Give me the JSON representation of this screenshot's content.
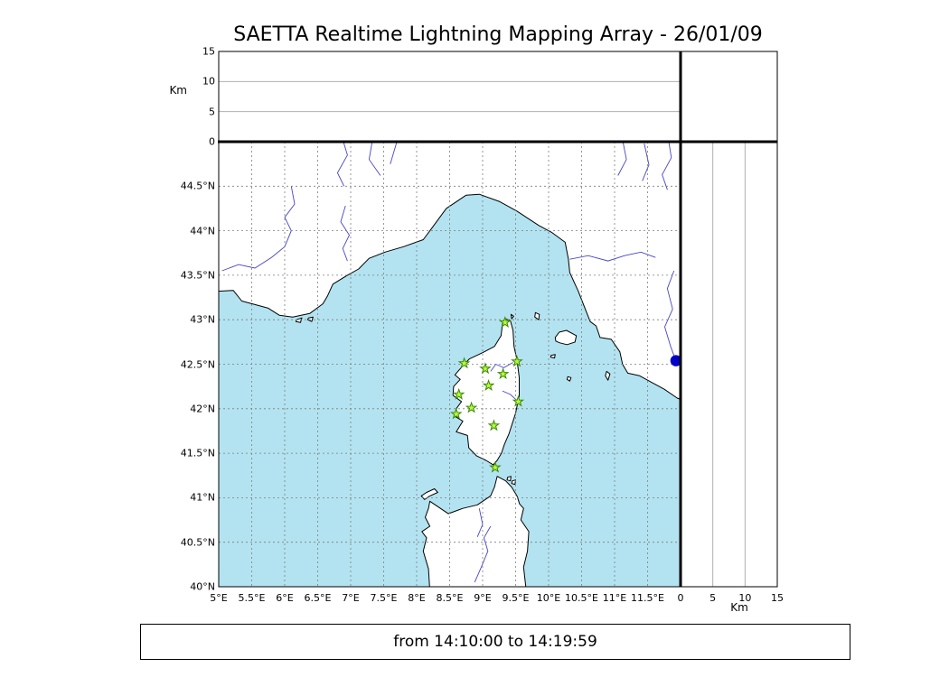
{
  "title": "SAETTA Realtime Lightning Mapping Array - 26/01/09",
  "footer": "from 14:10:00 to 14:19:59",
  "colors": {
    "sea": "#b3e3f0",
    "land": "#ffffff",
    "coast": "#000000",
    "river": "#4545c8",
    "grid": "#7d7d7d",
    "panel_grid": "#b0b0b0",
    "station_fill": "#b9f73e",
    "station_stroke": "#3a8a00",
    "event_dot": "#0000c8",
    "border": "#000000"
  },
  "chart_data": {
    "type": "scatter",
    "title": "SAETTA Realtime Lightning Mapping Array - 26/01/09",
    "time_window": "from 14:10:00 to 14:19:59",
    "panels": {
      "map": {
        "lon_range": [
          5,
          12
        ],
        "lat_range": [
          40,
          45
        ],
        "grid_step": 0.5,
        "lon_ticks": [
          {
            "value": 5,
            "label": "5°E"
          },
          {
            "value": 5.5,
            "label": "5.5°E"
          },
          {
            "value": 6,
            "label": "6°E"
          },
          {
            "value": 6.5,
            "label": "6.5°E"
          },
          {
            "value": 7,
            "label": "7°E"
          },
          {
            "value": 7.5,
            "label": "7.5°E"
          },
          {
            "value": 8,
            "label": "8°E"
          },
          {
            "value": 8.5,
            "label": "8.5°E"
          },
          {
            "value": 9,
            "label": "9°E"
          },
          {
            "value": 9.5,
            "label": "9.5°E"
          },
          {
            "value": 10,
            "label": "10°E"
          },
          {
            "value": 10.5,
            "label": "10.5°E"
          },
          {
            "value": 11,
            "label": "11°E"
          },
          {
            "value": 11.5,
            "label": "11.5°E"
          }
        ],
        "lat_ticks": [
          {
            "value": 44.5,
            "label": "44.5°N"
          },
          {
            "value": 44,
            "label": "44°N"
          },
          {
            "value": 43.5,
            "label": "43.5°N"
          },
          {
            "value": 43,
            "label": "43°N"
          },
          {
            "value": 42.5,
            "label": "42.5°N"
          },
          {
            "value": 42,
            "label": "42°N"
          },
          {
            "value": 41.5,
            "label": "41.5°N"
          },
          {
            "value": 41,
            "label": "41°N"
          },
          {
            "value": 40.5,
            "label": "40.5°N"
          },
          {
            "value": 40,
            "label": "40°N"
          }
        ]
      },
      "top_histogram": {
        "y_label": "Km",
        "y_range": [
          0,
          15
        ],
        "y_ticks": [
          0,
          5,
          10,
          15
        ],
        "gridlines": [
          5,
          10
        ],
        "data": []
      },
      "right_histogram": {
        "x_label": "Km",
        "x_range": [
          0,
          15
        ],
        "x_ticks": [
          0,
          5,
          10,
          15
        ],
        "gridlines": [
          5,
          10
        ],
        "data": []
      }
    },
    "stations": [
      {
        "lon": 9.34,
        "lat": 42.97
      },
      {
        "lon": 8.72,
        "lat": 42.51
      },
      {
        "lon": 9.04,
        "lat": 42.45
      },
      {
        "lon": 9.52,
        "lat": 42.53
      },
      {
        "lon": 9.31,
        "lat": 42.39
      },
      {
        "lon": 9.09,
        "lat": 42.26
      },
      {
        "lon": 8.64,
        "lat": 42.16
      },
      {
        "lon": 9.54,
        "lat": 42.08
      },
      {
        "lon": 8.83,
        "lat": 42.01
      },
      {
        "lon": 8.6,
        "lat": 41.94
      },
      {
        "lon": 9.17,
        "lat": 41.81
      },
      {
        "lon": 9.19,
        "lat": 41.34
      }
    ],
    "events": [
      {
        "lon": 11.93,
        "lat": 42.54
      }
    ]
  },
  "geo": {
    "mainland": [
      [
        4.7,
        43.35
      ],
      [
        5.0,
        43.32
      ],
      [
        5.22,
        43.33
      ],
      [
        5.35,
        43.21
      ],
      [
        5.55,
        43.17
      ],
      [
        5.75,
        43.13
      ],
      [
        5.92,
        43.05
      ],
      [
        6.12,
        43.03
      ],
      [
        6.38,
        43.07
      ],
      [
        6.58,
        43.18
      ],
      [
        6.65,
        43.27
      ],
      [
        6.73,
        43.4
      ],
      [
        6.95,
        43.5
      ],
      [
        7.12,
        43.57
      ],
      [
        7.28,
        43.69
      ],
      [
        7.52,
        43.76
      ],
      [
        7.8,
        43.82
      ],
      [
        8.1,
        43.9
      ],
      [
        8.25,
        44.05
      ],
      [
        8.45,
        44.25
      ],
      [
        8.75,
        44.4
      ],
      [
        8.95,
        44.41
      ],
      [
        9.25,
        44.33
      ],
      [
        9.52,
        44.22
      ],
      [
        9.85,
        44.06
      ],
      [
        10.05,
        43.98
      ],
      [
        10.25,
        43.87
      ],
      [
        10.3,
        43.68
      ],
      [
        10.32,
        43.53
      ],
      [
        10.45,
        43.32
      ],
      [
        10.54,
        43.15
      ],
      [
        10.63,
        42.98
      ],
      [
        10.72,
        42.93
      ],
      [
        10.78,
        42.8
      ],
      [
        10.95,
        42.78
      ],
      [
        11.08,
        42.64
      ],
      [
        11.12,
        42.5
      ],
      [
        11.2,
        42.4
      ],
      [
        11.38,
        42.37
      ],
      [
        11.55,
        42.3
      ],
      [
        11.75,
        42.22
      ],
      [
        11.95,
        42.12
      ],
      [
        12.3,
        42.02
      ],
      [
        12.3,
        45.3
      ],
      [
        4.7,
        45.3
      ]
    ],
    "corsica": [
      [
        9.345,
        43.01
      ],
      [
        9.42,
        42.99
      ],
      [
        9.46,
        42.88
      ],
      [
        9.475,
        42.7
      ],
      [
        9.52,
        42.55
      ],
      [
        9.555,
        42.35
      ],
      [
        9.555,
        42.15
      ],
      [
        9.5,
        41.95
      ],
      [
        9.4,
        41.72
      ],
      [
        9.33,
        41.6
      ],
      [
        9.285,
        41.5
      ],
      [
        9.22,
        41.42
      ],
      [
        9.16,
        41.37
      ],
      [
        9.05,
        41.42
      ],
      [
        8.91,
        41.47
      ],
      [
        8.79,
        41.56
      ],
      [
        8.77,
        41.7
      ],
      [
        8.6,
        41.74
      ],
      [
        8.7,
        41.86
      ],
      [
        8.57,
        41.92
      ],
      [
        8.6,
        42.0
      ],
      [
        8.68,
        42.08
      ],
      [
        8.55,
        42.15
      ],
      [
        8.56,
        42.25
      ],
      [
        8.66,
        42.33
      ],
      [
        8.58,
        42.38
      ],
      [
        8.72,
        42.5
      ],
      [
        8.8,
        42.56
      ],
      [
        9.0,
        42.63
      ],
      [
        9.18,
        42.7
      ],
      [
        9.28,
        42.82
      ],
      [
        9.3,
        42.95
      ]
    ],
    "sardinia": [
      [
        8.22,
        39.7
      ],
      [
        8.18,
        40.2
      ],
      [
        8.1,
        40.4
      ],
      [
        8.15,
        40.55
      ],
      [
        8.08,
        40.62
      ],
      [
        8.2,
        40.68
      ],
      [
        8.13,
        40.78
      ],
      [
        8.18,
        40.88
      ],
      [
        8.2,
        40.96
      ],
      [
        8.48,
        40.82
      ],
      [
        8.7,
        40.88
      ],
      [
        8.92,
        40.92
      ],
      [
        9.12,
        41.02
      ],
      [
        9.18,
        41.12
      ],
      [
        9.22,
        41.24
      ],
      [
        9.35,
        41.19
      ],
      [
        9.44,
        41.12
      ],
      [
        9.52,
        41.02
      ],
      [
        9.56,
        40.93
      ],
      [
        9.62,
        40.88
      ],
      [
        9.58,
        40.75
      ],
      [
        9.7,
        40.62
      ],
      [
        9.68,
        40.4
      ],
      [
        9.62,
        40.22
      ],
      [
        9.7,
        39.7
      ]
    ],
    "islands": [
      [
        [
          8.07,
          41.02
        ],
        [
          8.15,
          41.06
        ],
        [
          8.27,
          41.1
        ],
        [
          8.32,
          41.06
        ],
        [
          8.2,
          41.02
        ],
        [
          8.12,
          40.98
        ]
      ],
      [
        [
          10.1,
          42.8
        ],
        [
          10.16,
          42.86
        ],
        [
          10.27,
          42.88
        ],
        [
          10.42,
          42.82
        ],
        [
          10.4,
          42.75
        ],
        [
          10.28,
          42.72
        ],
        [
          10.17,
          42.74
        ],
        [
          10.11,
          42.76
        ]
      ],
      [
        [
          9.8,
          43.08
        ],
        [
          9.86,
          43.06
        ],
        [
          9.85,
          43.0
        ],
        [
          9.79,
          43.03
        ]
      ],
      [
        [
          9.43,
          43.06
        ],
        [
          9.47,
          43.04
        ],
        [
          9.44,
          43.01
        ]
      ],
      [
        [
          10.04,
          42.6
        ],
        [
          10.1,
          42.61
        ],
        [
          10.09,
          42.57
        ],
        [
          10.03,
          42.58
        ]
      ],
      [
        [
          10.29,
          42.36
        ],
        [
          10.34,
          42.35
        ],
        [
          10.32,
          42.31
        ],
        [
          10.28,
          42.33
        ]
      ],
      [
        [
          10.88,
          42.42
        ],
        [
          10.93,
          42.39
        ],
        [
          10.9,
          42.32
        ],
        [
          10.86,
          42.37
        ]
      ],
      [
        [
          6.18,
          43.0
        ],
        [
          6.26,
          43.02
        ],
        [
          6.24,
          42.97
        ],
        [
          6.17,
          42.98
        ]
      ],
      [
        [
          6.36,
          43.02
        ],
        [
          6.43,
          43.03
        ],
        [
          6.41,
          42.98
        ],
        [
          6.35,
          43.0
        ]
      ],
      [
        [
          9.38,
          41.23
        ],
        [
          9.43,
          41.24
        ],
        [
          9.42,
          41.19
        ],
        [
          9.37,
          41.2
        ]
      ],
      [
        [
          9.45,
          41.19
        ],
        [
          9.5,
          41.2
        ],
        [
          9.49,
          41.15
        ],
        [
          9.44,
          41.16
        ]
      ]
    ],
    "rivers": [
      [
        [
          5.05,
          43.55
        ],
        [
          5.3,
          43.62
        ],
        [
          5.55,
          43.58
        ],
        [
          5.8,
          43.7
        ],
        [
          6.0,
          43.82
        ],
        [
          6.1,
          44.0
        ],
        [
          6.0,
          44.15
        ],
        [
          6.15,
          44.3
        ],
        [
          6.1,
          44.5
        ]
      ],
      [
        [
          6.95,
          43.66
        ],
        [
          6.88,
          43.8
        ],
        [
          6.98,
          43.95
        ],
        [
          6.85,
          44.1
        ],
        [
          6.92,
          44.28
        ]
      ],
      [
        [
          6.85,
          45.1
        ],
        [
          6.95,
          44.85
        ],
        [
          6.8,
          44.65
        ],
        [
          6.9,
          44.5
        ]
      ],
      [
        [
          7.35,
          45.1
        ],
        [
          7.28,
          44.8
        ],
        [
          7.45,
          44.62
        ]
      ],
      [
        [
          7.7,
          45.0
        ],
        [
          7.6,
          44.75
        ]
      ],
      [
        [
          11.1,
          45.1
        ],
        [
          11.18,
          44.8
        ],
        [
          11.05,
          44.62
        ]
      ],
      [
        [
          11.45,
          44.98
        ],
        [
          11.52,
          44.74
        ],
        [
          11.42,
          44.56
        ]
      ],
      [
        [
          11.8,
          45.1
        ],
        [
          11.86,
          44.82
        ],
        [
          11.72,
          44.63
        ],
        [
          11.8,
          44.46
        ]
      ],
      [
        [
          10.32,
          43.68
        ],
        [
          10.6,
          43.72
        ],
        [
          10.9,
          43.66
        ],
        [
          11.15,
          43.72
        ],
        [
          11.4,
          43.76
        ],
        [
          11.62,
          43.7
        ]
      ],
      [
        [
          11.9,
          43.55
        ],
        [
          11.8,
          43.35
        ],
        [
          11.88,
          43.12
        ],
        [
          11.76,
          42.92
        ],
        [
          11.85,
          42.7
        ],
        [
          11.95,
          42.5
        ]
      ],
      [
        [
          8.88,
          40.05
        ],
        [
          8.98,
          40.22
        ],
        [
          9.08,
          40.4
        ],
        [
          9.02,
          40.55
        ],
        [
          9.12,
          40.68
        ]
      ],
      [
        [
          8.95,
          40.88
        ],
        [
          9.0,
          40.7
        ],
        [
          8.92,
          40.56
        ]
      ],
      [
        [
          9.46,
          42.52
        ],
        [
          9.32,
          42.46
        ],
        [
          9.2,
          42.5
        ],
        [
          9.12,
          42.42
        ]
      ],
      [
        [
          9.54,
          42.08
        ],
        [
          9.42,
          42.16
        ],
        [
          9.3,
          42.2
        ]
      ]
    ]
  }
}
